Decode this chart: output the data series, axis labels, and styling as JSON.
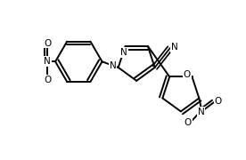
{
  "bg_color": "#ffffff",
  "line_color": "#000000",
  "line_width": 1.4,
  "font_size": 6.5,
  "xlim": [
    0,
    10
  ],
  "ylim": [
    0,
    6.5
  ],
  "figsize": [
    2.76,
    1.8
  ],
  "dpi": 100
}
